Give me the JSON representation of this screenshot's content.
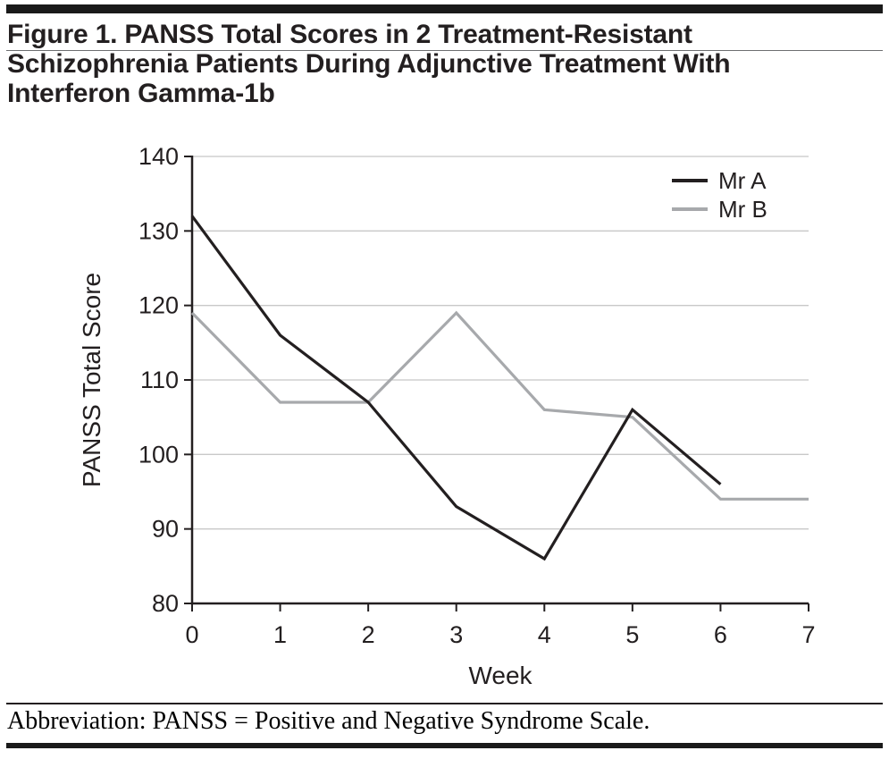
{
  "figure": {
    "title_lines": [
      "Figure 1. PANSS Total Scores in 2 Treatment-Resistant",
      "Schizophrenia Patients During Adjunctive Treatment With",
      "Interferon Gamma-1b"
    ],
    "footnote": "Abbreviation: PANSS = Positive and Negative Syndrome Scale."
  },
  "chart_data": {
    "type": "line",
    "title": "Figure 1. PANSS Total Scores in 2 Treatment-Resistant Schizophrenia Patients During Adjunctive Treatment With Interferon Gamma-1b",
    "xlabel": "Week",
    "ylabel": "PANSS Total Score",
    "xlim": [
      0,
      7
    ],
    "ylim": [
      80,
      140
    ],
    "xticks": [
      0,
      1,
      2,
      3,
      4,
      5,
      6,
      7
    ],
    "yticks": [
      80,
      90,
      100,
      110,
      120,
      130,
      140
    ],
    "grid": "horizontal",
    "grid_color": "#c8c8c8",
    "axis_color": "#231f20",
    "legend_position": "top-right",
    "series": [
      {
        "name": "Mr A",
        "color": "#231f20",
        "x": [
          0,
          1,
          2,
          3,
          4,
          5,
          6
        ],
        "values": [
          132,
          116,
          107,
          93,
          86,
          106,
          96
        ]
      },
      {
        "name": "Mr B",
        "color": "#a7a9ac",
        "x": [
          0,
          1,
          2,
          3,
          4,
          5,
          6,
          7
        ],
        "values": [
          119,
          107,
          107,
          119,
          106,
          105,
          94,
          94
        ]
      }
    ]
  }
}
